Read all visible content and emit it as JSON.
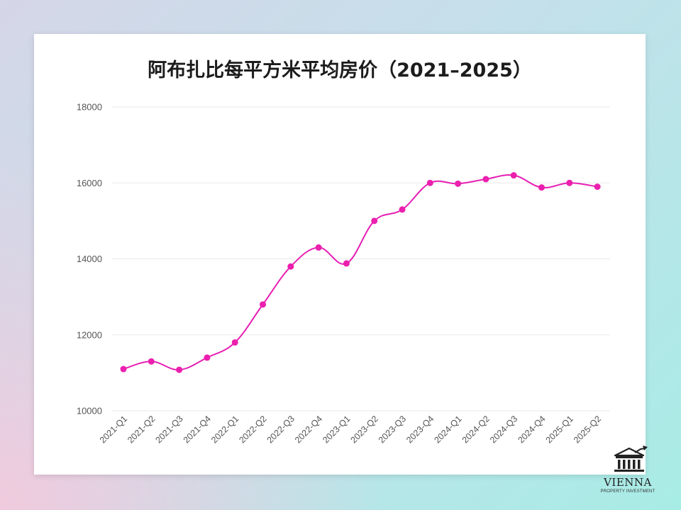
{
  "chart_data": {
    "type": "line",
    "title": "阿布扎比每平方米平均房价（2021–2025）",
    "categories": [
      "2021-Q1",
      "2021-Q2",
      "2021-Q3",
      "2021-Q4",
      "2022-Q1",
      "2022-Q2",
      "2022-Q3",
      "2022-Q4",
      "2023-Q1",
      "2023-Q2",
      "2023-Q3",
      "2023-Q4",
      "2024-Q1",
      "2024-Q2",
      "2024-Q3",
      "2024-Q4",
      "2025-Q1",
      "2025-Q2"
    ],
    "values": [
      11100,
      11300,
      11080,
      11400,
      11800,
      12800,
      13800,
      14300,
      13880,
      15000,
      15300,
      16000,
      15980,
      16100,
      16200,
      15880,
      16000,
      15900
    ],
    "ylim": [
      10000,
      18000
    ],
    "yticks": [
      10000,
      12000,
      14000,
      16000,
      18000
    ],
    "xlabel": "",
    "ylabel": "",
    "grid": true,
    "line_color": "#e61fb4",
    "marker_color": "#ec1fae"
  },
  "logo": {
    "name": "VIENNA",
    "subtitle": "PROPERTY INVESTMENT"
  }
}
